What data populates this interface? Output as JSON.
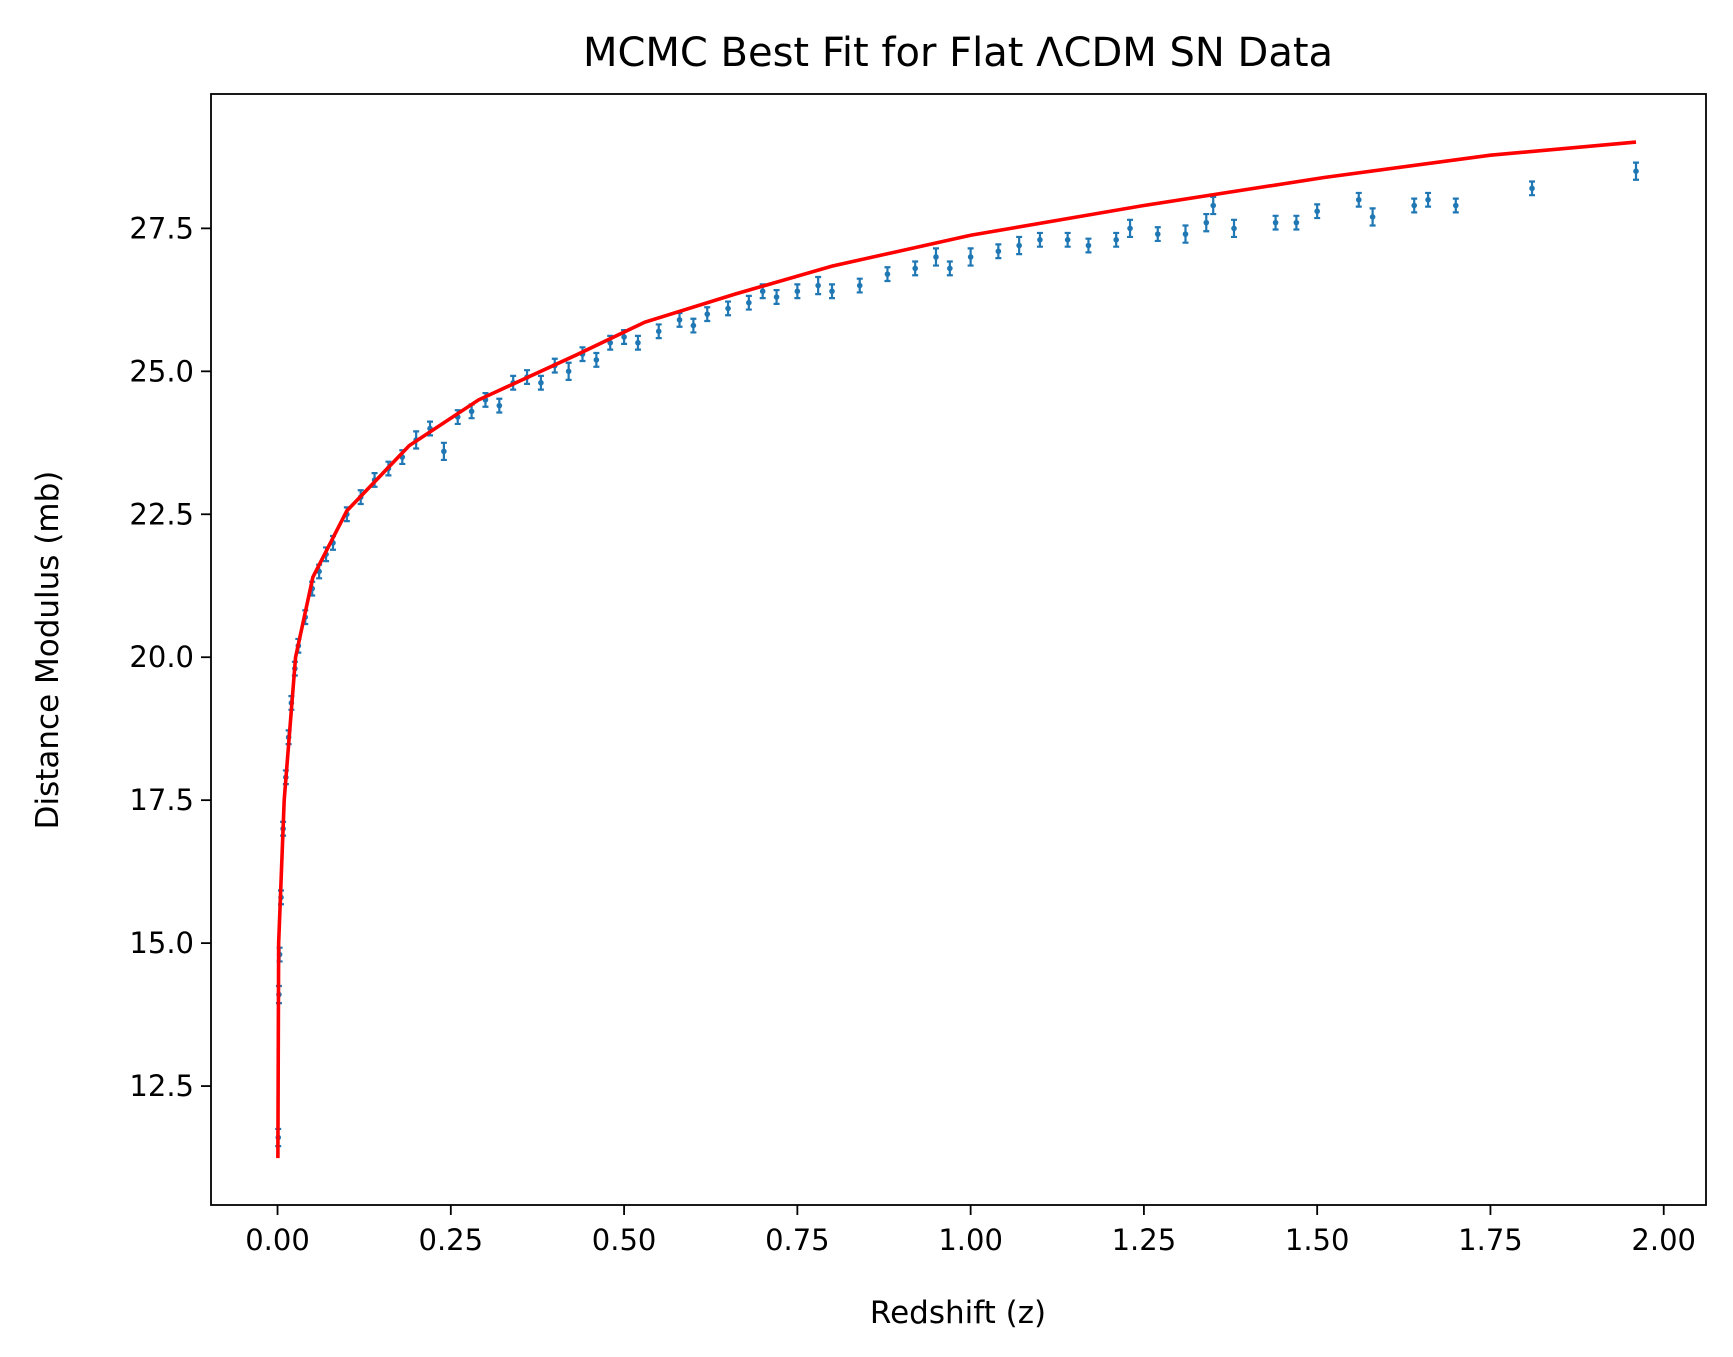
{
  "chart_data": {
    "type": "scatter",
    "title": "MCMC Best Fit for Flat ΛCDM SN Data",
    "x_label": "Redshift (z)",
    "y_label": "Distance Modulus (mb)",
    "xlim": [
      -0.096,
      2.061
    ],
    "ylim": [
      10.42,
      29.85
    ],
    "xticks": [
      {
        "value": 0,
        "label": "0.00"
      },
      0.25,
      {
        "value": 0.5,
        "label": "0.50"
      },
      0.75,
      {
        "value": 1,
        "label": "1.00"
      },
      1.25,
      {
        "value": 1.5,
        "label": "1.50"
      },
      1.75,
      {
        "value": 2,
        "label": "2.00"
      }
    ],
    "yticks": [
      12.5,
      {
        "value": 15,
        "label": "15.0"
      },
      17.5,
      {
        "value": 20,
        "label": "20.0"
      },
      22.5,
      {
        "value": 25,
        "label": "25.0"
      },
      27.5
    ],
    "series": [
      {
        "style": "errorbar",
        "color": "#1f77b4",
        "x": [
          0.001,
          0.002,
          0.003,
          0.005,
          0.008,
          0.012,
          0.016,
          0.02,
          0.025,
          0.03,
          0.04,
          0.05,
          0.06,
          0.07,
          0.08,
          0.1,
          0.12,
          0.14,
          0.16,
          0.18,
          0.2,
          0.22,
          0.24,
          0.26,
          0.28,
          0.3,
          0.32,
          0.34,
          0.36,
          0.38,
          0.4,
          0.42,
          0.44,
          0.46,
          0.48,
          0.5,
          0.52,
          0.55,
          0.58,
          0.6,
          0.62,
          0.65,
          0.68,
          0.7,
          0.72,
          0.75,
          0.78,
          0.8,
          0.84,
          0.88,
          0.92,
          0.95,
          0.97,
          1.0,
          1.04,
          1.07,
          1.1,
          1.14,
          1.17,
          1.21,
          1.23,
          1.27,
          1.31,
          1.34,
          1.35,
          1.38,
          1.44,
          1.47,
          1.5,
          1.56,
          1.58,
          1.64,
          1.66,
          1.7,
          1.81,
          1.96
        ],
        "values": [
          11.6,
          14.1,
          14.8,
          15.8,
          17.0,
          17.9,
          18.6,
          19.2,
          19.8,
          20.2,
          20.7,
          21.2,
          21.5,
          21.8,
          22.0,
          22.5,
          22.8,
          23.1,
          23.3,
          23.5,
          23.8,
          24.0,
          23.6,
          24.2,
          24.3,
          24.5,
          24.4,
          24.8,
          24.9,
          24.8,
          25.1,
          25.0,
          25.3,
          25.2,
          25.5,
          25.6,
          25.5,
          25.7,
          25.9,
          25.8,
          26.0,
          26.1,
          26.2,
          26.4,
          26.3,
          26.4,
          26.5,
          26.4,
          26.5,
          26.7,
          26.8,
          27.0,
          26.8,
          27.0,
          27.1,
          27.2,
          27.3,
          27.3,
          27.2,
          27.3,
          27.5,
          27.4,
          27.4,
          27.6,
          27.9,
          27.5,
          27.6,
          27.6,
          27.8,
          28.0,
          27.7,
          27.9,
          28.0,
          27.9,
          28.2,
          28.5
        ],
        "errors": [
          0.15,
          0.15,
          0.12,
          0.12,
          0.12,
          0.12,
          0.12,
          0.12,
          0.12,
          0.12,
          0.12,
          0.12,
          0.12,
          0.12,
          0.12,
          0.12,
          0.12,
          0.12,
          0.12,
          0.12,
          0.15,
          0.12,
          0.15,
          0.12,
          0.12,
          0.12,
          0.12,
          0.12,
          0.12,
          0.12,
          0.12,
          0.15,
          0.12,
          0.12,
          0.12,
          0.12,
          0.12,
          0.12,
          0.12,
          0.12,
          0.12,
          0.12,
          0.12,
          0.12,
          0.12,
          0.12,
          0.15,
          0.12,
          0.12,
          0.12,
          0.12,
          0.15,
          0.12,
          0.15,
          0.12,
          0.15,
          0.12,
          0.12,
          0.12,
          0.12,
          0.15,
          0.12,
          0.15,
          0.15,
          0.15,
          0.15,
          0.12,
          0.12,
          0.12,
          0.12,
          0.15,
          0.12,
          0.12,
          0.12,
          0.12,
          0.15
        ]
      },
      {
        "style": "line",
        "color": "#ff0000",
        "x": [
          0.0005,
          0.0016,
          0.0096,
          0.026,
          0.051,
          0.1,
          0.19,
          0.29,
          0.43,
          0.53,
          0.66,
          0.8,
          1.0,
          1.25,
          1.51,
          1.75,
          1.96
        ],
        "values": [
          11.24,
          15.0,
          17.5,
          20.0,
          21.4,
          22.56,
          23.7,
          24.5,
          25.28,
          25.86,
          26.35,
          26.84,
          27.38,
          27.9,
          28.39,
          28.78,
          29.01
        ]
      }
    ]
  }
}
